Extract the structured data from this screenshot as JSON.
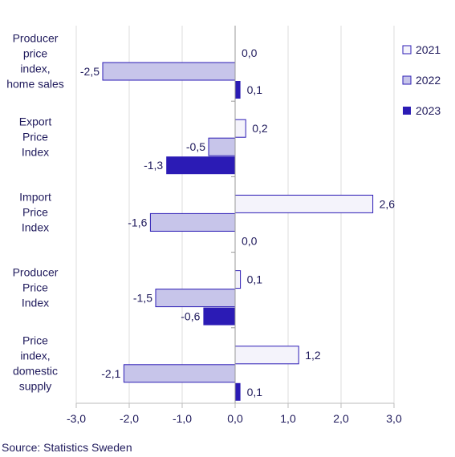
{
  "chart_data": {
    "type": "bar",
    "orientation": "horizontal",
    "categories": [
      "Producer price index, home sales",
      "Export Price Index",
      "Import Price Index",
      "Producer Price Index",
      "Price index, domestic supply"
    ],
    "category_lines": [
      [
        "Producer",
        "price",
        "index,",
        "home sales"
      ],
      [
        "Export",
        "Price",
        "Index"
      ],
      [
        "Import",
        "Price",
        "Index"
      ],
      [
        "Producer",
        "Price",
        "Index"
      ],
      [
        "Price",
        "index,",
        "domestic",
        "supply"
      ]
    ],
    "series": [
      {
        "name": "2021",
        "values": [
          0.0,
          0.2,
          2.6,
          0.1,
          1.2
        ],
        "labels": [
          "0,0",
          "0,2",
          "2,6",
          "0,1",
          "1,2"
        ],
        "color": "#f4f3fb"
      },
      {
        "name": "2022",
        "values": [
          -2.5,
          -0.5,
          -1.6,
          -1.5,
          -2.1
        ],
        "labels": [
          "-2,5",
          "-0,5",
          "-1,6",
          "-1,5",
          "-2,1"
        ],
        "color": "#c7c5ea"
      },
      {
        "name": "2023",
        "values": [
          0.1,
          -1.3,
          0.0,
          -0.6,
          0.1
        ],
        "labels": [
          "0,1",
          "-1,3",
          "0,0",
          "-0,6",
          "0,1"
        ],
        "color": "#2b1bb5"
      }
    ],
    "xlim": [
      -3.0,
      3.0
    ],
    "xticks": [
      -3.0,
      -2.0,
      -1.0,
      0.0,
      1.0,
      2.0,
      3.0
    ],
    "xtick_labels": [
      "-3,0",
      "-2,0",
      "-1,0",
      "0,0",
      "1,0",
      "2,0",
      "3,0"
    ],
    "grid": true,
    "legend_position": "top-right",
    "source": "Source: Statistics Sweden"
  }
}
